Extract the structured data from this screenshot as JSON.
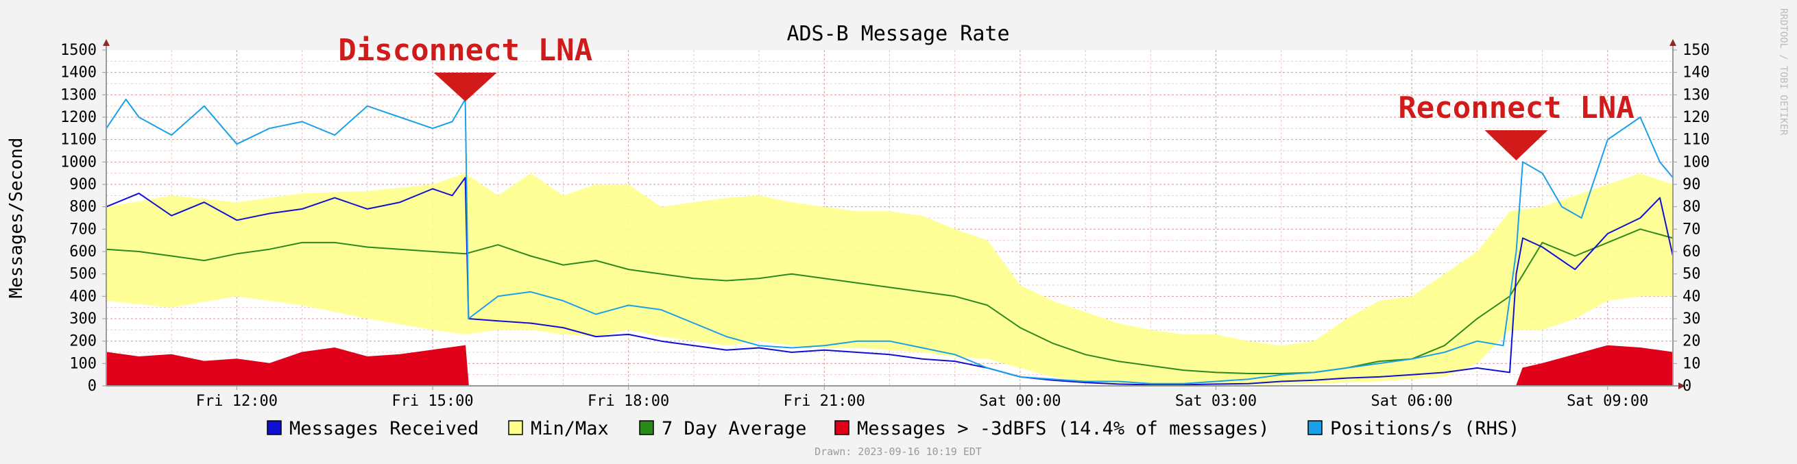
{
  "chart_data": {
    "type": "line",
    "title": "ADS-B Message Rate",
    "ylabel": "Messages/Second",
    "ylim": [
      0,
      1500
    ],
    "y2lim": [
      0,
      150
    ],
    "yticks": [
      0,
      100,
      200,
      300,
      400,
      500,
      600,
      700,
      800,
      900,
      1000,
      1100,
      1200,
      1300,
      1400,
      1500
    ],
    "y2ticks": [
      0,
      10,
      20,
      30,
      40,
      50,
      60,
      70,
      80,
      90,
      100,
      110,
      120,
      130,
      140,
      150
    ],
    "xlim": [
      10.0,
      34.0
    ],
    "xtick_labels": [
      {
        "x": 12,
        "label": "Fri 12:00"
      },
      {
        "x": 15,
        "label": "Fri 15:00"
      },
      {
        "x": 18,
        "label": "Fri 18:00"
      },
      {
        "x": 21,
        "label": "Fri 21:00"
      },
      {
        "x": 24,
        "label": "Sat 00:00"
      },
      {
        "x": 27,
        "label": "Sat 03:00"
      },
      {
        "x": 30,
        "label": "Sat 06:00"
      },
      {
        "x": 33,
        "label": "Sat 09:00"
      }
    ],
    "grid": true,
    "legend_position": "bottom",
    "colors": {
      "received": "#1010d0",
      "minmax_fill": "#ffff8c",
      "avg": "#2a8a1a",
      "strong": "#e0001a",
      "positions": "#1aa0e8",
      "grid": "#f08080",
      "annotation": "#d11a1a"
    },
    "series": [
      {
        "name": "Messages Received",
        "axis": "left",
        "x": [
          10.0,
          10.5,
          11.0,
          11.5,
          12.0,
          12.5,
          13.0,
          13.5,
          14.0,
          14.5,
          15.0,
          15.3,
          15.5,
          15.55,
          16.0,
          16.5,
          17.0,
          17.5,
          18.0,
          18.5,
          19.0,
          19.5,
          20.0,
          20.5,
          21.0,
          21.5,
          22.0,
          22.5,
          23.0,
          23.5,
          24.0,
          24.5,
          25.0,
          25.5,
          26.0,
          26.5,
          27.0,
          27.5,
          28.0,
          28.5,
          29.0,
          29.5,
          30.0,
          30.5,
          31.0,
          31.5,
          31.6,
          31.7,
          32.0,
          32.5,
          33.0,
          33.5,
          33.8,
          34.0
        ],
        "y": [
          800,
          860,
          760,
          820,
          740,
          770,
          790,
          840,
          790,
          820,
          880,
          850,
          930,
          300,
          290,
          280,
          260,
          220,
          230,
          200,
          180,
          160,
          170,
          150,
          160,
          150,
          140,
          120,
          110,
          80,
          40,
          25,
          15,
          8,
          5,
          5,
          8,
          10,
          20,
          25,
          35,
          40,
          50,
          60,
          80,
          60,
          500,
          660,
          620,
          520,
          680,
          750,
          840,
          580
        ]
      },
      {
        "name": "Min/Max (max)",
        "axis": "left",
        "x": [
          10,
          11,
          12,
          13,
          14,
          15,
          15.5,
          16,
          16.5,
          17,
          17.5,
          18,
          18.5,
          19,
          19.5,
          20,
          20.5,
          21,
          21.5,
          22,
          22.5,
          23,
          23.5,
          24,
          24.5,
          25,
          25.5,
          26,
          26.5,
          27,
          27.5,
          28,
          28.5,
          29,
          29.5,
          30,
          30.5,
          31,
          31.5,
          32,
          32.5,
          33,
          33.5,
          34
        ],
        "y": [
          800,
          850,
          820,
          860,
          870,
          900,
          950,
          850,
          950,
          850,
          900,
          900,
          800,
          820,
          840,
          850,
          820,
          800,
          780,
          780,
          760,
          700,
          650,
          450,
          380,
          330,
          280,
          250,
          230,
          230,
          200,
          180,
          200,
          300,
          380,
          400,
          500,
          600,
          780,
          800,
          850,
          900,
          950,
          900
        ]
      },
      {
        "name": "Min/Max (min)",
        "axis": "left",
        "x": [
          10,
          11,
          12,
          13,
          14,
          15,
          15.5,
          16,
          16.5,
          17,
          17.5,
          18,
          18.5,
          19,
          19.5,
          20,
          20.5,
          21,
          21.5,
          22,
          22.5,
          23,
          23.5,
          24,
          24.5,
          25,
          25.5,
          26,
          26.5,
          27,
          27.5,
          28,
          28.5,
          29,
          29.5,
          30,
          30.5,
          31,
          31.5,
          32,
          32.5,
          33,
          33.5,
          34
        ],
        "y": [
          380,
          350,
          400,
          360,
          300,
          250,
          230,
          250,
          250,
          230,
          220,
          250,
          220,
          200,
          180,
          200,
          180,
          170,
          170,
          160,
          150,
          130,
          120,
          80,
          40,
          20,
          8,
          5,
          5,
          5,
          5,
          8,
          10,
          15,
          20,
          30,
          40,
          100,
          250,
          250,
          300,
          380,
          400,
          400
        ]
      },
      {
        "name": "7 Day Average",
        "axis": "left",
        "x": [
          10,
          10.5,
          11,
          11.5,
          12,
          12.5,
          13,
          13.5,
          14,
          14.5,
          15,
          15.5,
          16,
          16.5,
          17,
          17.5,
          18,
          18.5,
          19,
          19.5,
          20,
          20.5,
          21,
          21.5,
          22,
          22.5,
          23,
          23.5,
          24,
          24.5,
          25,
          25.5,
          26,
          26.5,
          27,
          27.5,
          28,
          28.5,
          29,
          29.5,
          30,
          30.5,
          31,
          31.5,
          32,
          32.5,
          33,
          33.5,
          34
        ],
        "y": [
          610,
          600,
          580,
          560,
          590,
          610,
          640,
          640,
          620,
          610,
          600,
          590,
          630,
          580,
          540,
          560,
          520,
          500,
          480,
          470,
          480,
          500,
          480,
          460,
          440,
          420,
          400,
          360,
          260,
          190,
          140,
          110,
          90,
          70,
          60,
          55,
          55,
          60,
          80,
          110,
          120,
          180,
          300,
          400,
          640,
          580,
          640,
          700,
          660
        ]
      },
      {
        "name": "Messages > -3dBFS (14.4% of messages)",
        "axis": "left",
        "x": [
          10,
          10.5,
          11,
          11.5,
          12,
          12.5,
          13,
          13.5,
          14,
          14.5,
          15,
          15.5,
          15.55,
          31.6,
          31.7,
          32,
          32.5,
          33,
          33.5,
          34
        ],
        "y": [
          150,
          130,
          140,
          110,
          120,
          100,
          150,
          170,
          130,
          140,
          160,
          180,
          0,
          0,
          80,
          100,
          140,
          180,
          170,
          150
        ]
      },
      {
        "name": "Positions/s (RHS)",
        "axis": "right",
        "x": [
          10,
          10.3,
          10.5,
          11,
          11.5,
          12,
          12.5,
          13,
          13.5,
          14,
          14.5,
          15,
          15.3,
          15.5,
          15.55,
          16,
          16.5,
          17,
          17.5,
          18,
          18.5,
          19,
          19.5,
          20,
          20.5,
          21,
          21.5,
          22,
          22.5,
          23,
          23.5,
          24,
          24.5,
          25,
          25.5,
          26,
          26.5,
          27,
          27.5,
          28,
          28.5,
          29,
          29.5,
          30,
          30.5,
          31,
          31.4,
          31.6,
          31.7,
          32,
          32.3,
          32.6,
          33,
          33.5,
          33.8,
          34
        ],
        "y": [
          115,
          128,
          120,
          112,
          125,
          108,
          115,
          118,
          112,
          125,
          120,
          115,
          118,
          128,
          30,
          40,
          42,
          38,
          32,
          36,
          34,
          28,
          22,
          18,
          17,
          18,
          20,
          20,
          17,
          14,
          8,
          4,
          3,
          2,
          2,
          1,
          1,
          2,
          3,
          5,
          6,
          8,
          10,
          12,
          15,
          20,
          18,
          60,
          100,
          95,
          80,
          75,
          110,
          120,
          100,
          93
        ]
      }
    ]
  },
  "legend": [
    {
      "label": "Messages Received",
      "color": "#1010d0"
    },
    {
      "label": "Min/Max",
      "color": "#ffff8c"
    },
    {
      "label": "7 Day Average",
      "color": "#2a8a1a"
    },
    {
      "label": "Messages > -3dBFS (14.4% of messages)",
      "color": "#e0001a"
    },
    {
      "label": "Positions/s (RHS)",
      "color": "#1aa0e8"
    }
  ],
  "annotations": [
    {
      "text": "Disconnect LNA",
      "x": 15.5
    },
    {
      "text": "Reconnect LNA",
      "x": 31.6
    }
  ],
  "footer": "Drawn: 2023-09-16 10:19 EDT",
  "watermark": "RRDTOOL / TOBI OETIKER"
}
